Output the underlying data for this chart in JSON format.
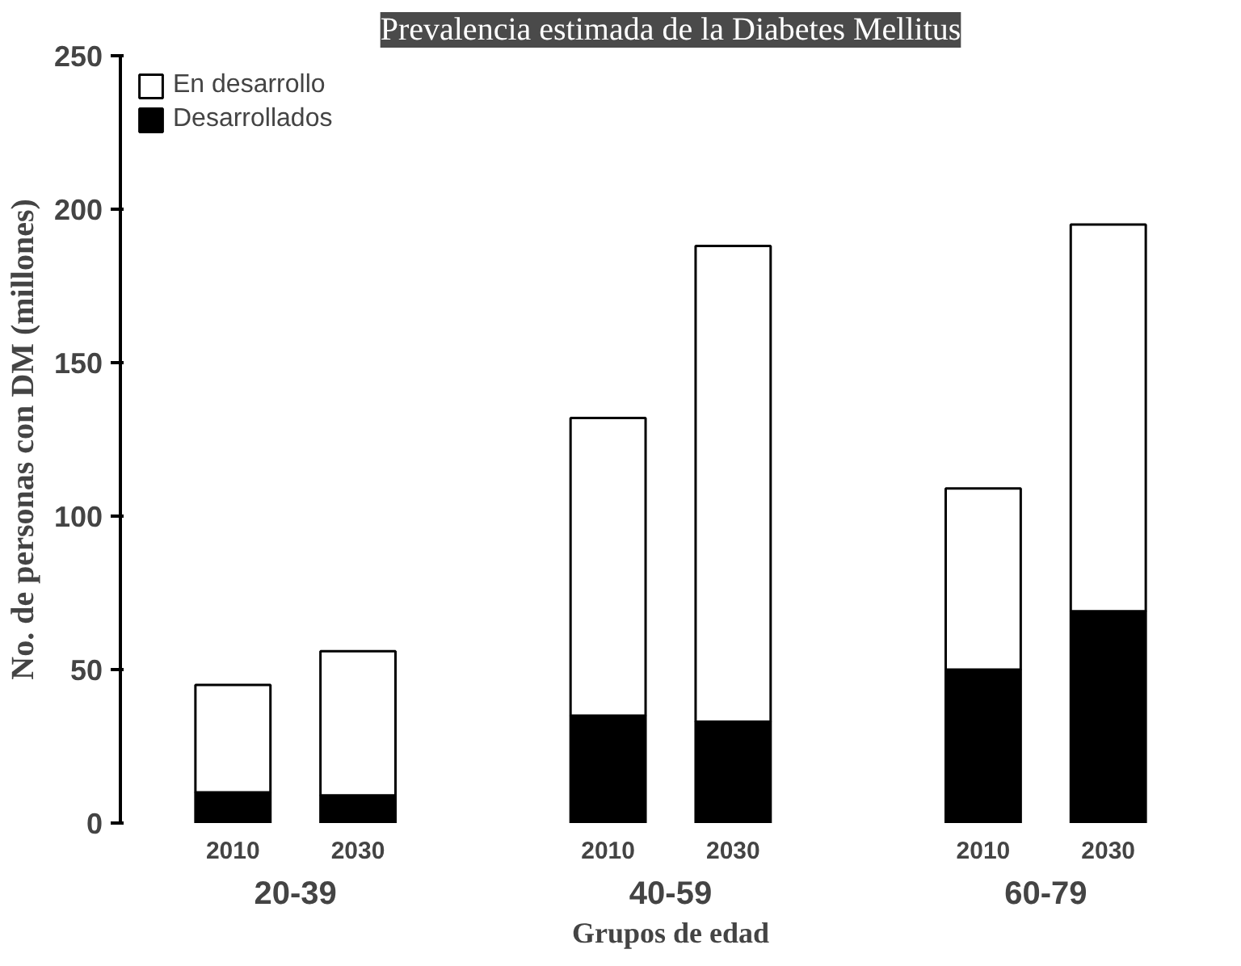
{
  "chart_data": {
    "type": "bar",
    "title": "Prevalencia estimada de la Diabetes Mellitus",
    "ylabel": "No. de personas con DM (millones)",
    "xlabel": "Grupos de edad",
    "categories": [
      "2010",
      "2030",
      "2010",
      "2030",
      "2010",
      "2030"
    ],
    "annotations": [
      "20-39",
      "40-59",
      "60-79"
    ],
    "stacked": true,
    "ylim": [
      0,
      250
    ],
    "yticks": [
      0,
      50,
      100,
      150,
      200,
      250
    ],
    "grid": false,
    "legend": "top left",
    "series": [
      {
        "name": "Desarrollados",
        "color": "#000000",
        "values": [
          10,
          9,
          35,
          33,
          50,
          69
        ]
      },
      {
        "name": "En desarrollo",
        "color": "#ffffff",
        "values": [
          35,
          47,
          97,
          155,
          59,
          126
        ]
      }
    ]
  }
}
